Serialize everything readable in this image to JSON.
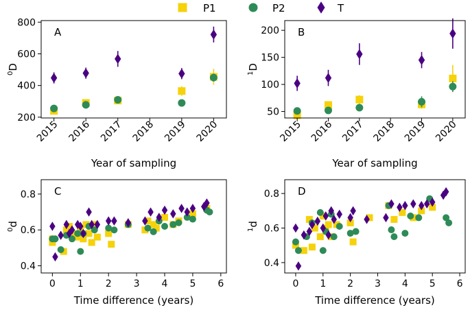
{
  "colors": {
    "P1": "#f5d20a",
    "P2": "#2e8b57",
    "T": "#4b0082",
    "axis": "#000000"
  },
  "legend": [
    {
      "label": "P1",
      "marker": "square"
    },
    {
      "label": "P2",
      "marker": "circle"
    },
    {
      "label": "T",
      "marker": "diamond"
    }
  ],
  "chart_data": [
    {
      "type": "scatter",
      "panel_label": "A",
      "title": "",
      "xlabel": "Year of sampling",
      "ylabel": "0D",
      "ylabel_sup": "0",
      "ylabel_main": "D",
      "xlim": [
        2014.6,
        2020.4
      ],
      "ylim": [
        195,
        810
      ],
      "xticks": [
        2015,
        2016,
        2017,
        2018,
        2019,
        2020
      ],
      "yticks": [
        200,
        400,
        600,
        800
      ],
      "series": [
        {
          "name": "P1",
          "x": [
            2015,
            2016,
            2017,
            2019,
            2020
          ],
          "y": [
            240,
            290,
            305,
            365,
            455
          ],
          "err": [
            12,
            18,
            20,
            30,
            50
          ]
        },
        {
          "name": "P2",
          "x": [
            2015,
            2016,
            2017,
            2019,
            2020
          ],
          "y": [
            255,
            278,
            310,
            290,
            450
          ],
          "err": [
            10,
            15,
            12,
            22,
            25
          ]
        },
        {
          "name": "T",
          "x": [
            2015,
            2016,
            2017,
            2019,
            2020
          ],
          "y": [
            448,
            478,
            568,
            475,
            722
          ],
          "err": [
            35,
            35,
            50,
            35,
            50
          ]
        }
      ]
    },
    {
      "type": "scatter",
      "panel_label": "B",
      "title": "",
      "xlabel": "Year of sampling",
      "ylabel": "1D",
      "ylabel_sup": "1",
      "ylabel_main": "D",
      "xlim": [
        2014.6,
        2020.4
      ],
      "ylim": [
        38,
        218
      ],
      "xticks": [
        2015,
        2016,
        2017,
        2018,
        2019,
        2020
      ],
      "yticks": [
        50,
        100,
        150,
        200
      ],
      "series": [
        {
          "name": "P1",
          "x": [
            2015,
            2016,
            2017,
            2019,
            2020
          ],
          "y": [
            43,
            62,
            72,
            63,
            111
          ],
          "err": [
            4,
            6,
            8,
            8,
            25
          ]
        },
        {
          "name": "P2",
          "x": [
            2015,
            2016,
            2017,
            2019,
            2020
          ],
          "y": [
            51,
            52,
            57,
            68,
            96
          ],
          "err": [
            4,
            4,
            5,
            10,
            10
          ]
        },
        {
          "name": "T",
          "x": [
            2015,
            2016,
            2017,
            2019,
            2020
          ],
          "y": [
            102,
            112,
            156,
            145,
            194
          ],
          "err": [
            14,
            15,
            20,
            15,
            28
          ]
        }
      ]
    },
    {
      "type": "scatter",
      "panel_label": "C",
      "title": "",
      "xlabel": "Time difference (years)",
      "ylabel": "0d",
      "ylabel_sup": "0",
      "ylabel_main": "d",
      "xlim": [
        -0.4,
        6.2
      ],
      "ylim": [
        0.36,
        0.88
      ],
      "xticks": [
        0,
        1,
        2,
        3,
        4,
        5,
        6
      ],
      "yticks": [
        0.4,
        0.6,
        0.8
      ],
      "series": [
        {
          "name": "P1",
          "x": [
            0,
            0,
            0.4,
            0.5,
            0.6,
            0.7,
            0.9,
            1.0,
            1.1,
            1.2,
            1.3,
            1.4,
            1.5,
            1.6,
            2.0,
            2.1,
            2.7,
            3.3,
            3.4,
            3.6,
            3.7,
            4.0,
            4.3,
            4.5,
            5.0,
            5.5
          ],
          "y": [
            0.53,
            0.55,
            0.48,
            0.6,
            0.62,
            0.58,
            0.56,
            0.6,
            0.55,
            0.63,
            0.58,
            0.53,
            0.63,
            0.56,
            0.58,
            0.52,
            0.63,
            0.6,
            0.65,
            0.63,
            0.61,
            0.67,
            0.63,
            0.65,
            0.69,
            0.72
          ],
          "err": []
        },
        {
          "name": "P2",
          "x": [
            0,
            0.1,
            0.3,
            0.5,
            0.7,
            0.9,
            1.0,
            1.1,
            1.3,
            1.5,
            2.0,
            2.2,
            2.7,
            3.4,
            3.6,
            3.8,
            4.0,
            4.3,
            4.5,
            4.8,
            5.0,
            5.5,
            5.6
          ],
          "y": [
            0.55,
            0.55,
            0.49,
            0.57,
            0.55,
            0.58,
            0.48,
            0.58,
            0.62,
            0.6,
            0.61,
            0.6,
            0.63,
            0.61,
            0.59,
            0.65,
            0.62,
            0.63,
            0.64,
            0.67,
            0.66,
            0.71,
            0.7
          ],
          "err": []
        },
        {
          "name": "T",
          "x": [
            0,
            0.1,
            0.3,
            0.5,
            0.6,
            0.7,
            0.9,
            1.0,
            1.1,
            1.3,
            1.4,
            1.6,
            2.0,
            2.2,
            2.7,
            3.3,
            3.5,
            3.8,
            4.0,
            4.3,
            4.6,
            4.8,
            5.0,
            5.4,
            5.5
          ],
          "y": [
            0.62,
            0.45,
            0.57,
            0.63,
            0.58,
            0.6,
            0.63,
            0.62,
            0.58,
            0.7,
            0.63,
            0.63,
            0.65,
            0.65,
            0.64,
            0.65,
            0.7,
            0.67,
            0.71,
            0.69,
            0.72,
            0.7,
            0.72,
            0.73,
            0.75
          ],
          "err": []
        }
      ]
    },
    {
      "type": "scatter",
      "panel_label": "D",
      "title": "",
      "xlabel": "Time difference (years)",
      "ylabel": "1d",
      "ylabel_sup": "1",
      "ylabel_main": "d",
      "xlim": [
        -0.4,
        6.2
      ],
      "ylim": [
        0.34,
        0.88
      ],
      "xticks": [
        0,
        1,
        2,
        3,
        4,
        5,
        6
      ],
      "yticks": [
        0.4,
        0.6,
        0.8
      ],
      "series": [
        {
          "name": "P1",
          "x": [
            0,
            0.3,
            0.5,
            0.6,
            0.7,
            0.9,
            1.0,
            1.1,
            1.2,
            1.3,
            1.5,
            2.0,
            2.1,
            2.7,
            3.4,
            3.6,
            3.9,
            4.3,
            4.6,
            5.0
          ],
          "y": [
            0.5,
            0.47,
            0.65,
            0.49,
            0.6,
            0.55,
            0.67,
            0.6,
            0.62,
            0.55,
            0.62,
            0.63,
            0.52,
            0.66,
            0.73,
            0.65,
            0.69,
            0.66,
            0.7,
            0.72
          ],
          "err": []
        },
        {
          "name": "P2",
          "x": [
            0,
            0.1,
            0.4,
            0.6,
            0.9,
            1.0,
            1.1,
            1.3,
            1.4,
            1.6,
            2.0,
            2.2,
            3.4,
            3.5,
            3.6,
            4.0,
            4.2,
            4.5,
            4.9,
            5.5,
            5.6
          ],
          "y": [
            0.52,
            0.47,
            0.55,
            0.63,
            0.69,
            0.47,
            0.58,
            0.68,
            0.55,
            0.61,
            0.57,
            0.58,
            0.73,
            0.59,
            0.55,
            0.57,
            0.67,
            0.66,
            0.77,
            0.66,
            0.63
          ],
          "err": []
        },
        {
          "name": "T",
          "x": [
            0,
            0.1,
            0.3,
            0.5,
            0.6,
            0.8,
            1.0,
            1.1,
            1.2,
            1.3,
            1.4,
            1.6,
            2.0,
            2.1,
            2.6,
            3.3,
            3.5,
            3.8,
            4.0,
            4.3,
            4.6,
            4.8,
            5.0,
            5.4,
            5.5
          ],
          "y": [
            0.6,
            0.38,
            0.56,
            0.58,
            0.62,
            0.64,
            0.6,
            0.67,
            0.56,
            0.7,
            0.65,
            0.68,
            0.66,
            0.7,
            0.65,
            0.66,
            0.74,
            0.72,
            0.73,
            0.74,
            0.73,
            0.74,
            0.75,
            0.79,
            0.81
          ],
          "err": []
        }
      ]
    }
  ]
}
